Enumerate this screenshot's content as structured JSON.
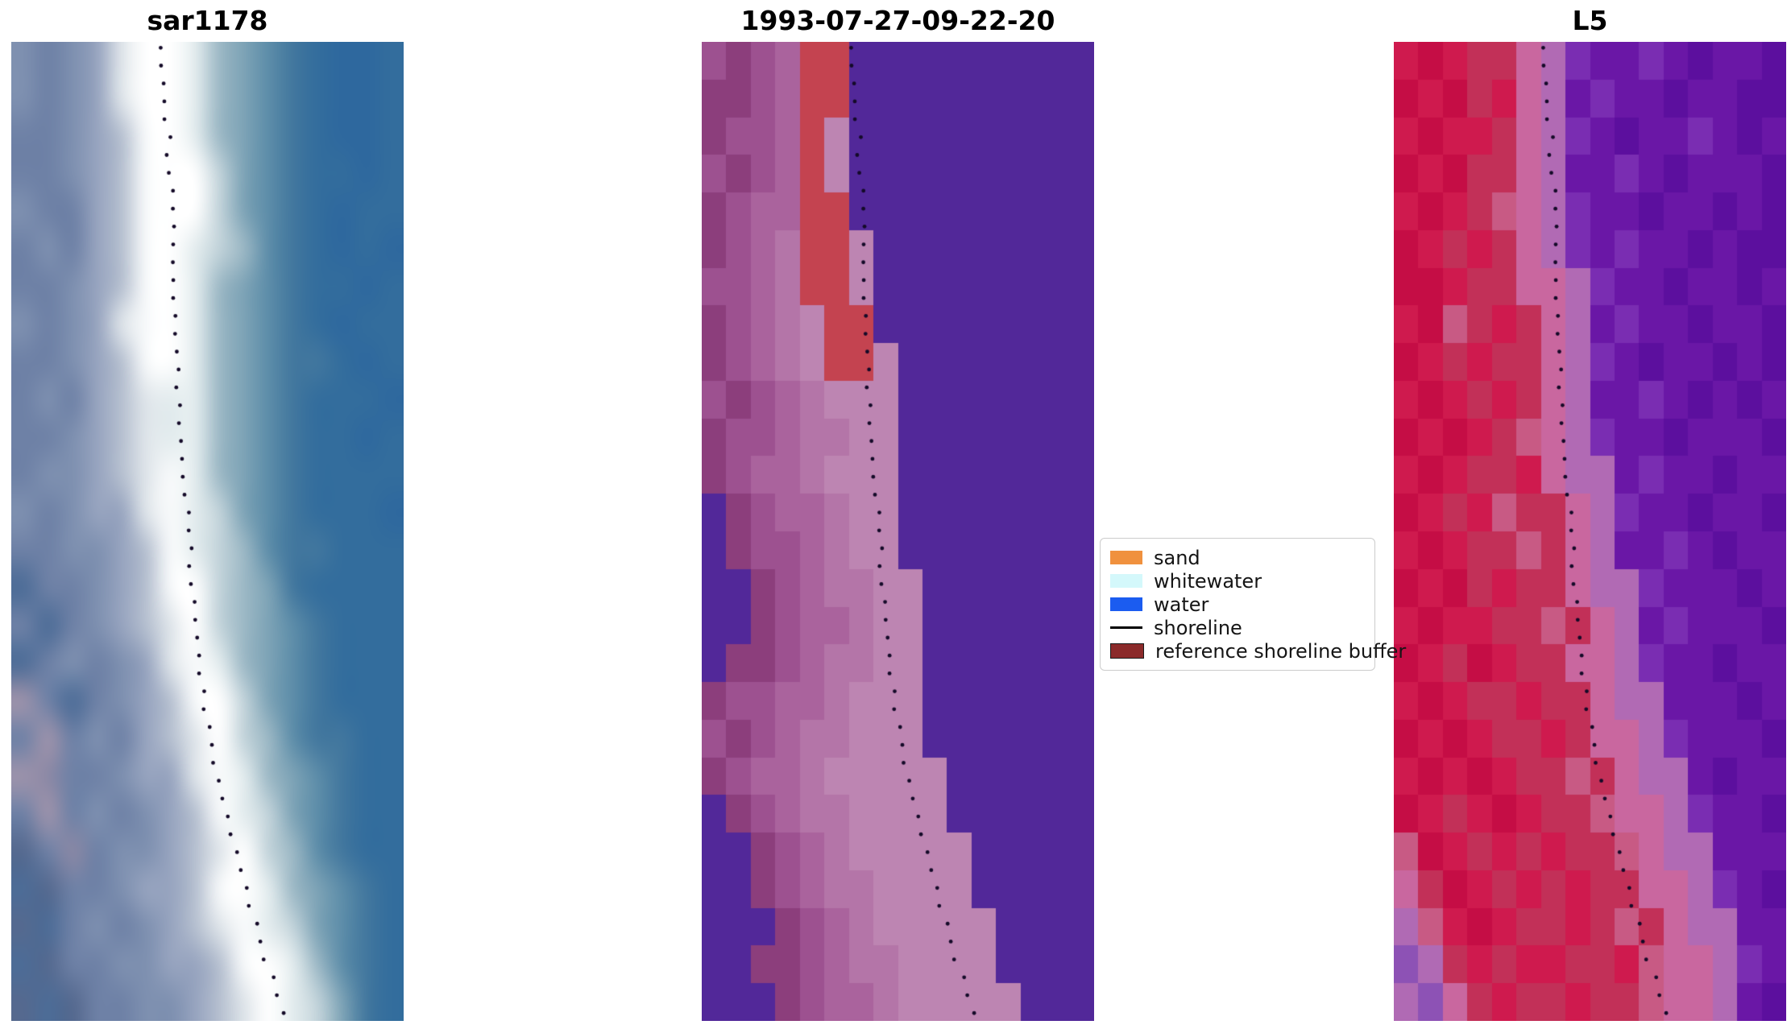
{
  "figure": {
    "background": "#ffffff"
  },
  "chart_data": {
    "type": "heatmap",
    "description_titles": [
      "sar1178",
      "1993-07-27-09-22-20",
      "L5"
    ],
    "shoreline": {
      "color": "#140a28",
      "dots_per_panel": 55,
      "dot_radius": 2.4,
      "points": [
        [
          0.385,
          0.005
        ],
        [
          0.392,
          0.045
        ],
        [
          0.398,
          0.09
        ],
        [
          0.404,
          0.135
        ],
        [
          0.41,
          0.18
        ],
        [
          0.415,
          0.225
        ],
        [
          0.41,
          0.27
        ],
        [
          0.416,
          0.305
        ],
        [
          0.423,
          0.345
        ],
        [
          0.43,
          0.39
        ],
        [
          0.437,
          0.43
        ],
        [
          0.444,
          0.465
        ],
        [
          0.45,
          0.5
        ],
        [
          0.456,
          0.535
        ],
        [
          0.463,
          0.57
        ],
        [
          0.47,
          0.6
        ],
        [
          0.478,
          0.632
        ],
        [
          0.487,
          0.662
        ],
        [
          0.497,
          0.69
        ],
        [
          0.509,
          0.717
        ],
        [
          0.522,
          0.743
        ],
        [
          0.536,
          0.768
        ],
        [
          0.55,
          0.792
        ],
        [
          0.565,
          0.815
        ],
        [
          0.58,
          0.838
        ],
        [
          0.595,
          0.86
        ],
        [
          0.61,
          0.882
        ],
        [
          0.626,
          0.904
        ],
        [
          0.642,
          0.926
        ],
        [
          0.658,
          0.948
        ],
        [
          0.674,
          0.97
        ],
        [
          0.69,
          0.99
        ]
      ]
    },
    "panels": [
      {
        "title": "sar1178",
        "smooth": true,
        "grid_cols": 16,
        "grid_rows": 26,
        "palette": {
          "0": "#55698f",
          "1": "#6e81a6",
          "2": "#7e90b0",
          "3": "#97a4bf",
          "4": "#b6c0d0",
          "5": "#dfe5ea",
          "6": "#f8fafb",
          "7": "#ffffff",
          "8": "#e3ecee",
          "9": "#c2d3da",
          "a": "#9cb8c5",
          "b": "#7da3b6",
          "c": "#5d8da9",
          "d": "#42779e",
          "e": "#336d9d",
          "f": "#2e689e",
          "g": "#3a739e",
          "h": "#9e93ab",
          "i": "#8b88a5",
          "j": "#4c6c97"
        },
        "rows": [
          "21235778abcdeffe",
          "21235778abcdeffe",
          "11234678abcdeffe",
          "112346779bcdeefe",
          "211346779bcdefee",
          "121346789acdefef",
          "11234678abcdeefe",
          "21235678abcdefee",
          "11234678abcddefe",
          "12134588abcdeeef",
          "11234588abcdeefe",
          "12234568abcdeeee",
          "212335689bcdeeef",
          "112234689acddeee",
          "j11234679abdeeee",
          "1j1234579abcdeee",
          "j12123568abcdeee",
          "h1j1234679bcdeee",
          "1h12134579acddee",
          "hi11233568abcdee",
          "1h121234689bcdee",
          "01i12234579acdee",
          "j0112334678abcde",
          "0j1212345689bcde",
          "j01122334678acde",
          "0j01122345789bde"
        ]
      },
      {
        "title": "1993-07-27-09-22-20",
        "smooth": false,
        "grid_cols": 16,
        "grid_rows": 26,
        "palette": {
          "a": "#8c3e7c",
          "b": "#9d5190",
          "c": "#aa639d",
          "d": "#b475a8",
          "e": "#bd85b2",
          "r": "#c44350",
          "p": "#522899"
        },
        "rows": [
          "babcrrpppppppppp",
          "aabcrrpppppppppp",
          "abbcrepppppppppp",
          "babcrepppppppppp",
          "abccrrpppppppppp",
          "abcdrreppppppppp",
          "bbcdrreppppppppp",
          "abcderrppppppppp",
          "abcderrepppppppp",
          "babcdeeepppppppp",
          "abbcddeepppppppp",
          "abccdeeepppppppp",
          "pabccdeepppppppp",
          "pabbcdeepppppppp",
          "ppabcddeeppppppp",
          "ppabccdeeppppppp",
          "paabcddeeppppppp",
          "abbccdeeeppppppp",
          "babcddeeeppppppp",
          "abccdeeeeepppppp",
          "pabcddeeeepppppp",
          "ppabcdeeeeeppppp",
          "ppabcddeeeeppppp",
          "pppabcdeeeeepppp",
          "ppaabcddeeeepppp",
          "pppabccdeeeeeppp"
        ]
      },
      {
        "title": "L5",
        "smooth": false,
        "grid_cols": 16,
        "grid_rows": 26,
        "palette": {
          "A": "#c50d45",
          "B": "#cf1a4e",
          "C": "#c23058",
          "D": "#c85a84",
          "E": "#c9679f",
          "F": "#b16ab4",
          "G": "#7a2db2",
          "H": "#6a17a6",
          "I": "#5c0f9e",
          "J": "#8d52b5",
          "K": "#b06ab4"
        },
        "rows": [
          "BABCCEFGHHGHIHHI",
          "ABACBEFHGHHIHHII",
          "BABBCEFGHIHHGHIH",
          "ABACCEFHHGHIHHHI",
          "BABCDEFGHHIHHIHI",
          "ABCBCEFGHGHHIHII",
          "AABCCEEFGHHIHHIH",
          "BADCBCEFHGHHIHHI",
          "ABCBCCEFGHIHHIHI",
          "BABCBCEFHHGHIHIH",
          "ABABCDEFGHHIHHHI",
          "BABCCBEFFHGHHIHH",
          "ABCBDCCEFGHHIHHI",
          "BABCCDCEFHHGHIHH",
          "ABACBCCEFFGHHHIH",
          "BABBCCDCEFHGHHHI",
          "ABCABCCEEFGHHIHH",
          "BABCCBCCEFFHHHIH",
          "ABABCCBCEEFGHHHI",
          "BABABCCDCEFFHIHH",
          "ABCBABCCDEEFGHHI",
          "DABCBCBCCDEFFHHH",
          "ECABCBCBCCEEFGHI",
          "KDBABCCBCDCEFFHH",
          "JKCBCBBCCBDEEFGH",
          "KJECBCCBCCDEEFHI"
        ]
      }
    ]
  },
  "legend": {
    "items": [
      {
        "label": "sand",
        "kind": "patch",
        "color": "#f0913e"
      },
      {
        "label": "whitewater",
        "kind": "patch",
        "color": "#d4f8fb"
      },
      {
        "label": "water",
        "kind": "patch",
        "color": "#1b5cf0"
      },
      {
        "label": "shoreline",
        "kind": "line",
        "color": "#000000"
      },
      {
        "label": "reference shoreline buffer",
        "kind": "patch",
        "color": "#8b2a2a",
        "border": "#1a1a1a"
      }
    ]
  }
}
